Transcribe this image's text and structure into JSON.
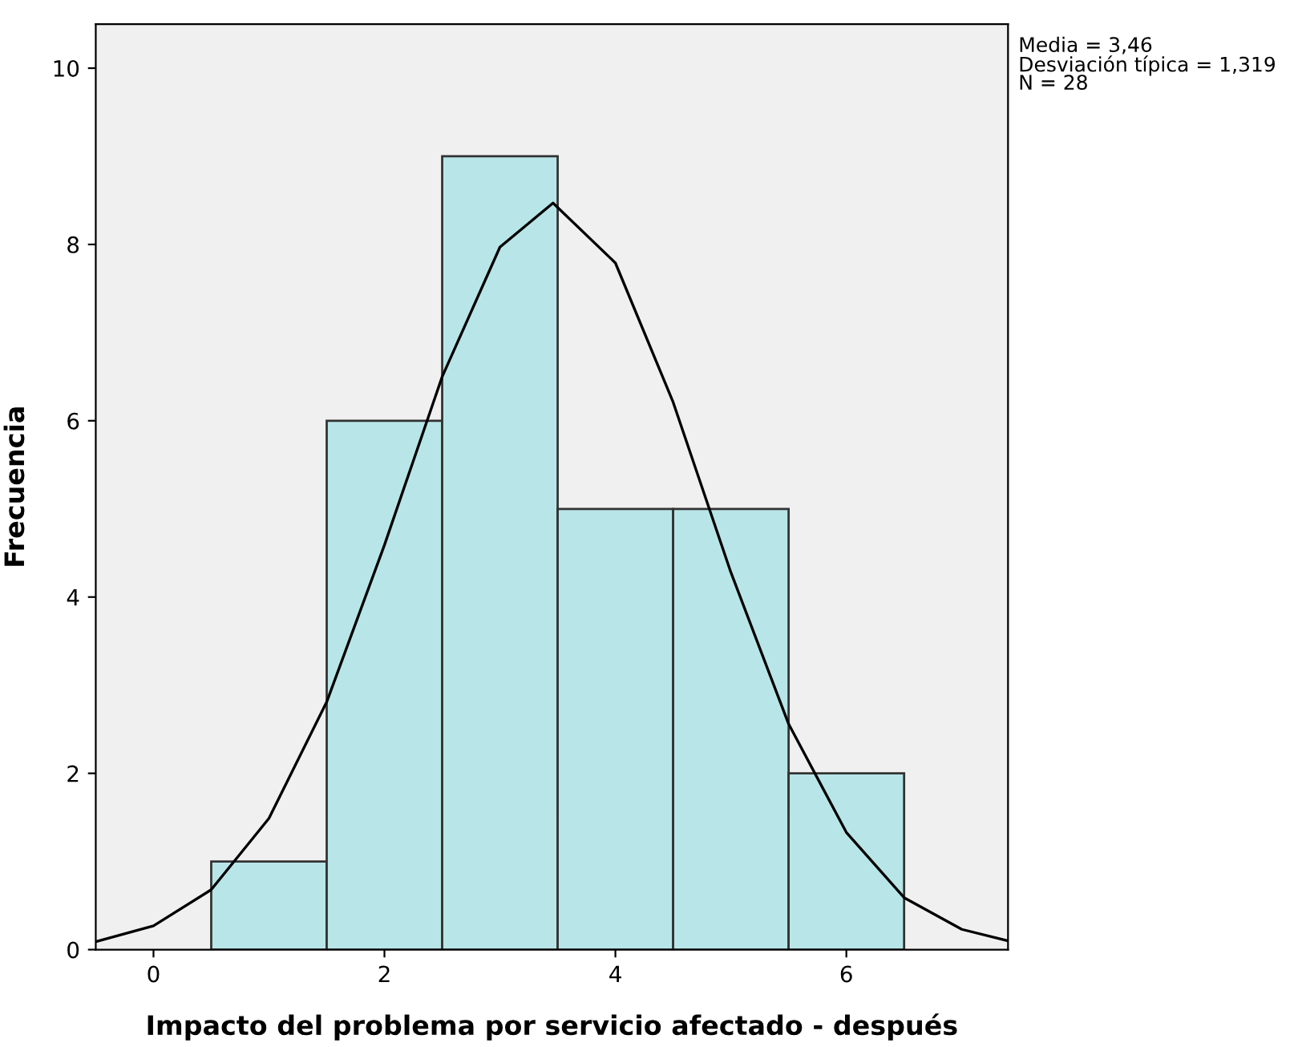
{
  "chart_data": {
    "type": "histogram",
    "xlabel": "Impacto del problema por servicio afectado - después",
    "ylabel": "Frecuencia",
    "bins": [
      0.5,
      1.5,
      2.5,
      3.5,
      4.5,
      5.5,
      6.5
    ],
    "values": [
      1,
      6,
      9,
      5,
      5,
      2
    ],
    "color": "#b8e6e8",
    "series": [
      {
        "type": "line",
        "color": "#000000",
        "x": [
          -0.5,
          0,
          0.5,
          1,
          1.5,
          2,
          2.5,
          3,
          3.46,
          4,
          4.5,
          5,
          5.5,
          6,
          6.5,
          7,
          7.4
        ],
        "values": [
          0.09,
          0.27,
          0.68,
          1.49,
          2.81,
          4.59,
          6.5,
          7.97,
          8.47,
          7.79,
          6.21,
          4.28,
          2.56,
          1.33,
          0.59,
          0.23,
          0.1
        ]
      }
    ],
    "xlim": [
      -0.5,
      7.4
    ],
    "ylim": [
      0,
      10.5
    ],
    "xticks": [
      0,
      2,
      4,
      6
    ],
    "yticks": [
      0,
      2,
      4,
      6,
      8,
      10
    ],
    "grid": false,
    "annotations": [
      "Media = 3,46",
      "Desviación típica = 1,319",
      "N = 28"
    ]
  }
}
